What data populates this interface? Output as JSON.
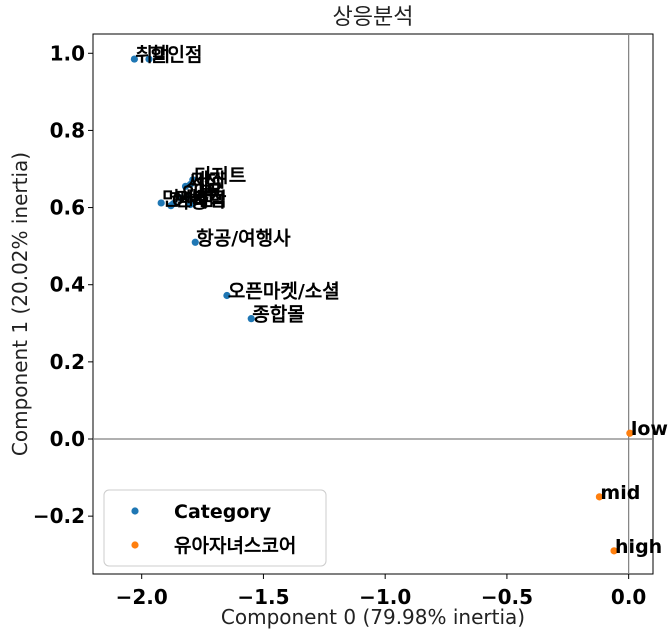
{
  "chart_data": {
    "type": "scatter",
    "title": "상응분석",
    "xlabel": "Component 0 (79.98% inertia)",
    "ylabel": "Component 1 (20.02% inertia)",
    "xlim": [
      -2.2,
      0.1
    ],
    "ylim": [
      -0.35,
      1.05
    ],
    "x_ticks": [
      {
        "value": -2.0,
        "label": "−2.0"
      },
      {
        "value": -1.5,
        "label": "−1.5"
      },
      {
        "value": -1.0,
        "label": "−1.0"
      },
      {
        "value": -0.5,
        "label": "−0.5"
      },
      {
        "value": 0.0,
        "label": "0.0"
      }
    ],
    "y_ticks": [
      {
        "value": -0.2,
        "label": "−0.2"
      },
      {
        "value": 0.0,
        "label": "0.0"
      },
      {
        "value": 0.2,
        "label": "0.2"
      },
      {
        "value": 0.4,
        "label": "0.4"
      },
      {
        "value": 0.6,
        "label": "0.6"
      },
      {
        "value": 0.8,
        "label": "0.8"
      },
      {
        "value": 1.0,
        "label": "1.0"
      }
    ],
    "reference_lines": {
      "x": 0.0,
      "y": 0.0
    },
    "legend": {
      "position": "lower-left"
    },
    "series": [
      {
        "name": "Category",
        "color": "#1f77b4",
        "points": [
          {
            "x": -2.03,
            "y": 0.985,
            "label": "취미"
          },
          {
            "x": -1.97,
            "y": 0.985,
            "label": "할인점"
          },
          {
            "x": -1.79,
            "y": 0.672,
            "label": "디저트"
          },
          {
            "x": -1.8,
            "y": 0.66,
            "label": "제과"
          },
          {
            "x": -1.82,
            "y": 0.655,
            "label": "서점"
          },
          {
            "x": -1.81,
            "y": 0.63,
            "label": "교육"
          },
          {
            "x": -1.84,
            "y": 0.625,
            "label": "의류"
          },
          {
            "x": -1.87,
            "y": 0.61,
            "label": "편의점"
          },
          {
            "x": -1.8,
            "y": 0.608,
            "label": "숙박"
          },
          {
            "x": -1.92,
            "y": 0.612,
            "label": "면세점"
          },
          {
            "x": -1.88,
            "y": 0.605,
            "label": "여행"
          },
          {
            "x": -1.78,
            "y": 0.51,
            "label": "항공/여행사"
          },
          {
            "x": -1.65,
            "y": 0.372,
            "label": "오픈마켓/소셜"
          },
          {
            "x": -1.55,
            "y": 0.312,
            "label": "종합몰"
          }
        ]
      },
      {
        "name": "유아자녀스코어",
        "color": "#ff7f0e",
        "points": [
          {
            "x": 0.005,
            "y": 0.015,
            "label": "low"
          },
          {
            "x": -0.12,
            "y": -0.15,
            "label": "mid"
          },
          {
            "x": -0.06,
            "y": -0.29,
            "label": "high"
          }
        ]
      }
    ]
  }
}
